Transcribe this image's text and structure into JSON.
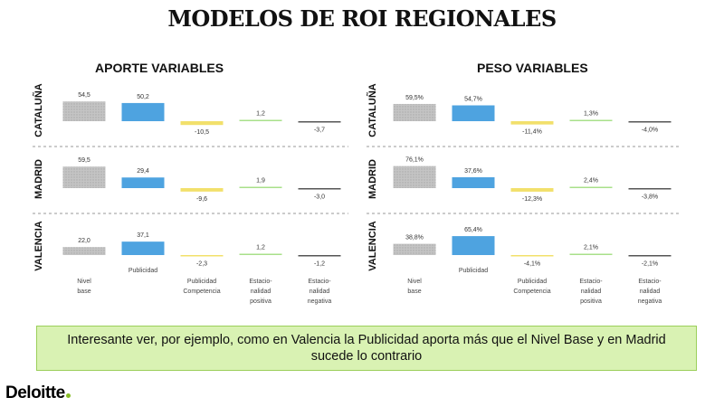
{
  "title": "MODELOS DE ROI REGIONALES",
  "callout": "Interesante ver, por ejemplo, como en Valencia la Publicidad aporta más que el Nivel Base y en Madrid sucede lo contrario",
  "logo": "Deloitte",
  "colors": {
    "nivel_base": "#bfbfbf",
    "publicidad": "#4ea3e0",
    "competencia": "#f2e06b",
    "positiva": "#a8e08a",
    "negativa": "#555555",
    "accent": "#86bc25"
  },
  "chart_data": [
    {
      "type": "bar",
      "title": "APORTE VARIABLES",
      "categories": [
        "Nivel base",
        "Publicidad",
        "Publicidad Competencia",
        "Estacio-nalidad positiva",
        "Estacio-nalidad negativa"
      ],
      "category_labels": [
        [
          "Nivel",
          "base"
        ],
        [
          "Publicidad"
        ],
        [
          "Publicidad",
          "Competencia"
        ],
        [
          "Estacio-",
          "nalidad",
          "positiva"
        ],
        [
          "Estacio-",
          "nalidad",
          "negativa"
        ]
      ],
      "rows": [
        {
          "region": "CATALUÑA",
          "values": [
            54.5,
            50.2,
            -10.5,
            1.2,
            -3.7
          ],
          "labels": [
            "54,5",
            "50,2",
            "-10,5",
            "1,2",
            "-3,7"
          ]
        },
        {
          "region": "MADRID",
          "values": [
            59.5,
            29.4,
            -9.6,
            1.9,
            -3.0
          ],
          "labels": [
            "59,5",
            "29,4",
            "-9,6",
            "1,9",
            "-3,0"
          ]
        },
        {
          "region": "VALENCIA",
          "values": [
            22.0,
            37.1,
            -2.3,
            1.2,
            -1.2
          ],
          "labels": [
            "22,0",
            "37,1",
            "-2,3",
            "1,2",
            "-1,2"
          ]
        }
      ]
    },
    {
      "type": "bar",
      "title": "PESO VARIABLES",
      "categories": [
        "Nivel base",
        "Publicidad",
        "Publicidad Competencia",
        "Estacio-nalidad positiva",
        "Estacio-nalidad negativa"
      ],
      "category_labels": [
        [
          "Nivel",
          "base"
        ],
        [
          "Publicidad"
        ],
        [
          "Publicidad",
          "Competencia"
        ],
        [
          "Estacio-",
          "nalidad",
          "positiva"
        ],
        [
          "Estacio-",
          "nalidad",
          "negativa"
        ]
      ],
      "unit": "%",
      "rows": [
        {
          "region": "CATALUÑA",
          "values": [
            59.5,
            54.7,
            -11.4,
            1.3,
            -4.0
          ],
          "labels": [
            "59,5%",
            "54,7%",
            "-11,4%",
            "1,3%",
            "-4,0%"
          ]
        },
        {
          "region": "MADRID",
          "values": [
            76.1,
            37.6,
            -12.3,
            2.4,
            -3.8
          ],
          "labels": [
            "76,1%",
            "37,6%",
            "-12,3%",
            "2,4%",
            "-3,8%"
          ]
        },
        {
          "region": "VALENCIA",
          "values": [
            38.8,
            65.4,
            -4.1,
            2.1,
            -2.1
          ],
          "labels": [
            "38,8%",
            "65,4%",
            "-4,1%",
            "2,1%",
            "-2,1%"
          ]
        }
      ]
    }
  ]
}
